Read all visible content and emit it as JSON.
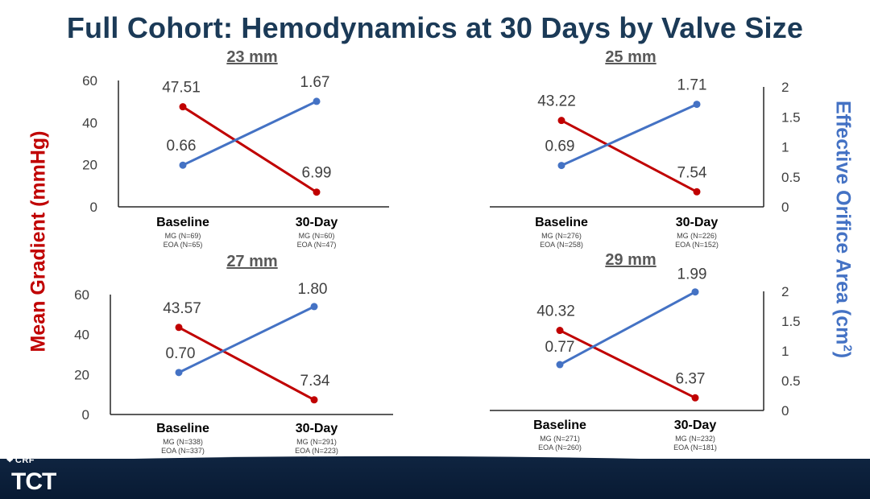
{
  "title": "Full Cohort: Hemodynamics at 30 Days by Valve Size",
  "y_left_label": "Mean Gradient (mmHg)",
  "y_right_label_main": "Effective Orifice Area (cm",
  "y_right_label_sup": "2",
  "y_right_label_close": ")",
  "colors": {
    "mg": "#c00000",
    "eoa": "#4472c4",
    "title": "#1b3a57"
  },
  "logo": {
    "crf": "CRF",
    "tct": "TCT",
    "icon": "chevron-heart-icon"
  },
  "chart_data": [
    {
      "type": "line",
      "title": "23 mm",
      "categories": [
        "Baseline",
        "30-Day"
      ],
      "category_notes": [
        [
          "MG (N=69)",
          "EOA (N=65)"
        ],
        [
          "MG (N=60)",
          "EOA (N=47)"
        ]
      ],
      "left_axis": {
        "ylim": [
          0,
          60
        ],
        "ticks": [
          "0",
          "20",
          "40",
          "60"
        ],
        "visible": true
      },
      "right_axis": {
        "ylim": [
          0,
          2
        ],
        "ticks": [],
        "visible": false
      },
      "series": [
        {
          "values": [
            47.51,
            6.99
          ],
          "labels": [
            "47.51",
            "6.99"
          ],
          "axis": "left",
          "color": "#c00000"
        },
        {
          "values": [
            0.66,
            1.67
          ],
          "labels": [
            "0.66",
            "1.67"
          ],
          "axis": "right",
          "color": "#4472c4"
        }
      ]
    },
    {
      "type": "line",
      "title": "25 mm",
      "categories": [
        "Baseline",
        "30-Day"
      ],
      "category_notes": [
        [
          "MG (N=276)",
          "EOA (N=258)"
        ],
        [
          "MG (N=226)",
          "EOA (N=152)"
        ]
      ],
      "left_axis": {
        "ylim": [
          0,
          60
        ],
        "ticks": [],
        "visible": false
      },
      "right_axis": {
        "ylim": [
          0,
          2
        ],
        "ticks": [
          "0",
          "0.5",
          "1",
          "1.5",
          "2"
        ],
        "visible": true
      },
      "series": [
        {
          "values": [
            43.22,
            7.54
          ],
          "labels": [
            "43.22",
            "7.54"
          ],
          "axis": "left",
          "color": "#c00000"
        },
        {
          "values": [
            0.69,
            1.71
          ],
          "labels": [
            "0.69",
            "1.71"
          ],
          "axis": "right",
          "color": "#4472c4"
        }
      ]
    },
    {
      "type": "line",
      "title": "27 mm",
      "categories": [
        "Baseline",
        "30-Day"
      ],
      "category_notes": [
        [
          "MG (N=338)",
          "EOA (N=337)"
        ],
        [
          "MG (N=291)",
          "EOA (N=223)"
        ]
      ],
      "left_axis": {
        "ylim": [
          0,
          60
        ],
        "ticks": [
          "0",
          "20",
          "40",
          "60"
        ],
        "visible": true
      },
      "right_axis": {
        "ylim": [
          0,
          2
        ],
        "ticks": [],
        "visible": false
      },
      "series": [
        {
          "values": [
            43.57,
            7.34
          ],
          "labels": [
            "43.57",
            "7.34"
          ],
          "axis": "left",
          "color": "#c00000"
        },
        {
          "values": [
            0.7,
            1.8
          ],
          "labels": [
            "0.70",
            "1.80"
          ],
          "axis": "right",
          "color": "#4472c4"
        }
      ]
    },
    {
      "type": "line",
      "title": "29 mm",
      "categories": [
        "Baseline",
        "30-Day"
      ],
      "category_notes": [
        [
          "MG (N=271)",
          "EOA (N=260)"
        ],
        [
          "MG (N=232)",
          "EOA (N=181)"
        ]
      ],
      "left_axis": {
        "ylim": [
          0,
          60
        ],
        "ticks": [],
        "visible": false
      },
      "right_axis": {
        "ylim": [
          0,
          2
        ],
        "ticks": [
          "0",
          "0.5",
          "1",
          "1.5",
          "2"
        ],
        "visible": true
      },
      "series": [
        {
          "values": [
            40.32,
            6.37
          ],
          "labels": [
            "40.32",
            "6.37"
          ],
          "axis": "left",
          "color": "#c00000"
        },
        {
          "values": [
            0.77,
            1.99
          ],
          "labels": [
            "0.77",
            "1.99"
          ],
          "axis": "right",
          "color": "#4472c4"
        }
      ]
    }
  ]
}
